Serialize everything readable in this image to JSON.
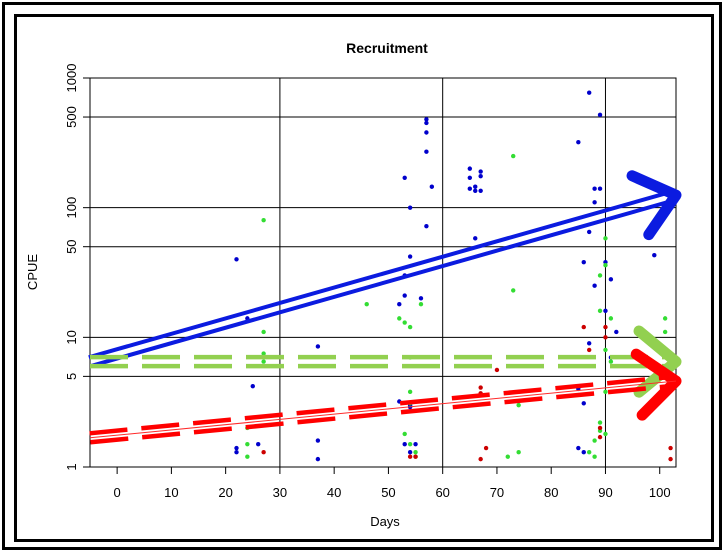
{
  "chart_data": {
    "type": "scatter",
    "title": "Recruitment",
    "xlabel": "Days",
    "ylabel": "CPUE",
    "xlim": [
      -5,
      103
    ],
    "ylim": [
      1,
      1000
    ],
    "y_scale": "log",
    "grid": true,
    "x_ticks": [
      0,
      10,
      20,
      30,
      40,
      50,
      60,
      70,
      80,
      90,
      100
    ],
    "y_ticks": [
      1,
      5,
      10,
      50,
      100,
      500,
      1000
    ],
    "vertical_gridlines": [
      30,
      60,
      90
    ],
    "horizontal_gridlines": [
      5,
      10,
      50,
      100,
      500
    ],
    "colors": {
      "blue": "#0000cc",
      "green": "#33dd33",
      "red": "#cc0000",
      "blue_arrow": "#0b1be0",
      "green_line": "#92d050",
      "red_line": "#ff0000",
      "thin_red_line": "#ff2a2a"
    },
    "series": [
      {
        "color": "blue",
        "points": [
          [
            22,
            40
          ],
          [
            24,
            14
          ],
          [
            25,
            4.2
          ],
          [
            26,
            1.5
          ],
          [
            22,
            1.4
          ],
          [
            22,
            1.3
          ],
          [
            37,
            8.5
          ],
          [
            37,
            1.6
          ],
          [
            37,
            1.15
          ],
          [
            53,
            170
          ],
          [
            54,
            100
          ],
          [
            54,
            42
          ],
          [
            53,
            30
          ],
          [
            53,
            21
          ],
          [
            52,
            18
          ],
          [
            52,
            3.2
          ],
          [
            54,
            3
          ],
          [
            54,
            2.9
          ],
          [
            53,
            1.5
          ],
          [
            54,
            1.3
          ],
          [
            55,
            1.5
          ],
          [
            57,
            480
          ],
          [
            57,
            450
          ],
          [
            57,
            380
          ],
          [
            57,
            270
          ],
          [
            57,
            72
          ],
          [
            58,
            145
          ],
          [
            56,
            20
          ],
          [
            65,
            200
          ],
          [
            65,
            170
          ],
          [
            65,
            140
          ],
          [
            66,
            145
          ],
          [
            66,
            135
          ],
          [
            67,
            190
          ],
          [
            67,
            175
          ],
          [
            67,
            135
          ],
          [
            66,
            58
          ],
          [
            85,
            320
          ],
          [
            87,
            770
          ],
          [
            88,
            140
          ],
          [
            89,
            140
          ],
          [
            88,
            110
          ],
          [
            89,
            520
          ],
          [
            86,
            38
          ],
          [
            87,
            65
          ],
          [
            88,
            25
          ],
          [
            87,
            9
          ],
          [
            85,
            4
          ],
          [
            86,
            3.1
          ],
          [
            90,
            38
          ],
          [
            91,
            28
          ],
          [
            90,
            16
          ],
          [
            92,
            11
          ],
          [
            91,
            7
          ],
          [
            85,
            1.4
          ],
          [
            86,
            1.3
          ],
          [
            99,
            43
          ]
        ]
      },
      {
        "color": "green",
        "points": [
          [
            27,
            80
          ],
          [
            27,
            11
          ],
          [
            27,
            7.5
          ],
          [
            27,
            6.5
          ],
          [
            24,
            2
          ],
          [
            24,
            1.5
          ],
          [
            24,
            1.2
          ],
          [
            46,
            18
          ],
          [
            52,
            14
          ],
          [
            53,
            13
          ],
          [
            54,
            12
          ],
          [
            56,
            18
          ],
          [
            54,
            7
          ],
          [
            54,
            3.8
          ],
          [
            54,
            3.1
          ],
          [
            53,
            1.8
          ],
          [
            54,
            1.5
          ],
          [
            55,
            1.3
          ],
          [
            55,
            1.2
          ],
          [
            73,
            250
          ],
          [
            73,
            23
          ],
          [
            74,
            3
          ],
          [
            74,
            1.3
          ],
          [
            72,
            1.2
          ],
          [
            90,
            58
          ],
          [
            90,
            36
          ],
          [
            89,
            30
          ],
          [
            89,
            16
          ],
          [
            91,
            14
          ],
          [
            90,
            8
          ],
          [
            91,
            6.5
          ],
          [
            90,
            3.8
          ],
          [
            89,
            2.2
          ],
          [
            89,
            1.9
          ],
          [
            90,
            1.8
          ],
          [
            88,
            1.6
          ],
          [
            87,
            1.3
          ],
          [
            88,
            1.2
          ],
          [
            101,
            14
          ],
          [
            101,
            11
          ],
          [
            101,
            6
          ]
        ]
      },
      {
        "color": "red",
        "points": [
          [
            27,
            1.3
          ],
          [
            54,
            1.2
          ],
          [
            55,
            1.2
          ],
          [
            67,
            4.1
          ],
          [
            67,
            3.7
          ],
          [
            68,
            1.4
          ],
          [
            67,
            1.15
          ],
          [
            70,
            5.6
          ],
          [
            86,
            12
          ],
          [
            87,
            8
          ],
          [
            90,
            12
          ],
          [
            90,
            10
          ],
          [
            89,
            1.7
          ],
          [
            89,
            2
          ],
          [
            102,
            1.4
          ],
          [
            102,
            1.15
          ]
        ]
      }
    ],
    "overlays": [
      {
        "name": "blue-trend-arrow",
        "color": "blue_arrow",
        "style": "double-arrow",
        "from": [
          -5,
          6.5
        ],
        "to": [
          103,
          125
        ]
      },
      {
        "name": "green-flat-arrow",
        "color": "green_line",
        "style": "dashed-double-arrow",
        "from": [
          -5,
          6.5
        ],
        "to": [
          103,
          6.5
        ]
      },
      {
        "name": "red-trend-arrow",
        "color": "red_line",
        "style": "dashed-double-arrow",
        "from": [
          -5,
          1.68
        ],
        "to": [
          103,
          4.6
        ]
      },
      {
        "name": "red-fit-line",
        "color": "thin_red_line",
        "style": "thin-line",
        "from": [
          -5,
          1.68
        ],
        "to": [
          103,
          4.6
        ]
      }
    ]
  }
}
